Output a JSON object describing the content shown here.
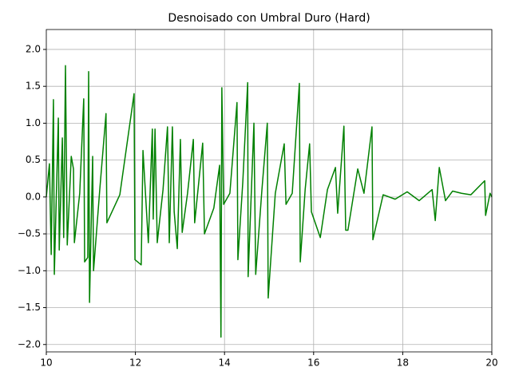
{
  "chart_data": {
    "type": "line",
    "title": "Desnoisado con Umbral Duro (Hard)",
    "x": [
      10.0,
      10.07,
      10.11,
      10.16,
      10.18,
      10.27,
      10.29,
      10.36,
      10.39,
      10.43,
      10.47,
      10.56,
      10.61,
      10.63,
      10.75,
      10.84,
      10.86,
      10.93,
      10.95,
      10.97,
      11.04,
      11.06,
      11.2,
      11.34,
      11.36,
      11.65,
      11.97,
      11.99,
      12.13,
      12.17,
      12.29,
      12.38,
      12.4,
      12.44,
      12.49,
      12.62,
      12.72,
      12.76,
      12.83,
      12.87,
      12.94,
      13.01,
      13.05,
      13.17,
      13.3,
      13.33,
      13.51,
      13.55,
      13.76,
      13.89,
      13.92,
      13.94,
      13.98,
      14.12,
      14.28,
      14.3,
      14.41,
      14.52,
      14.53,
      14.66,
      14.7,
      14.84,
      14.96,
      14.98,
      15.14,
      15.34,
      15.38,
      15.52,
      15.68,
      15.7,
      15.81,
      15.91,
      15.95,
      16.15,
      16.31,
      16.49,
      16.54,
      16.68,
      16.72,
      16.77,
      16.99,
      17.13,
      17.31,
      17.33,
      17.56,
      17.83,
      18.1,
      18.37,
      18.66,
      18.73,
      18.82,
      18.96,
      19.12,
      19.32,
      19.53,
      19.84,
      19.86,
      19.96,
      20.0
    ],
    "series": [
      {
        "name": "Desnoisado",
        "color": "#008000",
        "values": [
          0,
          0.45,
          -0.78,
          1.32,
          -1.05,
          1.07,
          -0.72,
          0.8,
          -0.55,
          1.78,
          -0.65,
          0.55,
          0.38,
          -0.62,
          0.05,
          1.33,
          -0.88,
          -0.82,
          1.7,
          -1.43,
          0.55,
          -1.0,
          0.1,
          1.13,
          -0.35,
          0.03,
          1.4,
          -0.85,
          -0.92,
          0.63,
          -0.62,
          0.92,
          -0.3,
          0.92,
          -0.62,
          0.1,
          0.95,
          -0.62,
          0.95,
          -0.2,
          -0.7,
          0.78,
          -0.48,
          0.05,
          0.78,
          -0.35,
          0.73,
          -0.5,
          -0.15,
          0.43,
          -1.9,
          1.48,
          -0.1,
          0.05,
          1.28,
          -0.85,
          0.2,
          1.55,
          -1.08,
          1.0,
          -1.05,
          0.1,
          1.0,
          -1.37,
          0.05,
          0.72,
          -0.1,
          0.05,
          1.54,
          -0.88,
          0.1,
          0.72,
          -0.2,
          -0.55,
          0.1,
          0.4,
          -0.22,
          0.96,
          -0.45,
          -0.45,
          0.38,
          0.05,
          0.95,
          -0.58,
          0.03,
          -0.03,
          0.07,
          -0.05,
          0.1,
          -0.32,
          0.4,
          -0.05,
          0.08,
          0.05,
          0.03,
          0.22,
          -0.25,
          0.05,
          0
        ]
      }
    ],
    "xlim": [
      10,
      20
    ],
    "xticks": [
      10,
      12,
      14,
      16,
      18,
      20
    ],
    "ylim": [
      -2.1,
      2.27
    ],
    "yticks": [
      {
        "value": -2,
        "label": "−2.0"
      },
      {
        "value": -1.5,
        "label": "−1.5"
      },
      {
        "value": -1,
        "label": "−1.0"
      },
      {
        "value": -0.5,
        "label": "−0.5"
      },
      {
        "value": 0,
        "label": "0.0"
      },
      {
        "value": 0.5,
        "label": "0.5"
      },
      {
        "value": 1,
        "label": "1.0"
      },
      {
        "value": 1.5,
        "label": "1.5"
      },
      {
        "value": 2,
        "label": "2.0"
      }
    ],
    "grid": true
  }
}
